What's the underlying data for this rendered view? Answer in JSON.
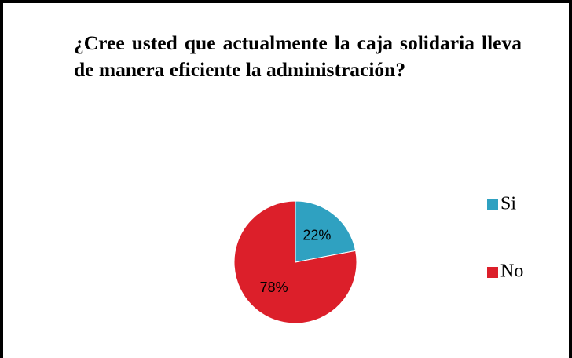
{
  "chart_data": {
    "type": "pie",
    "title": "¿Cree usted que actualmente la caja solidaria lleva de manera eficiente la administración?",
    "categories": [
      "Si",
      "No"
    ],
    "values": [
      22,
      78
    ],
    "value_labels": [
      "22%",
      "78%"
    ],
    "colors": [
      "#2fa1c1",
      "#dc1f2a"
    ],
    "legend": "right"
  }
}
